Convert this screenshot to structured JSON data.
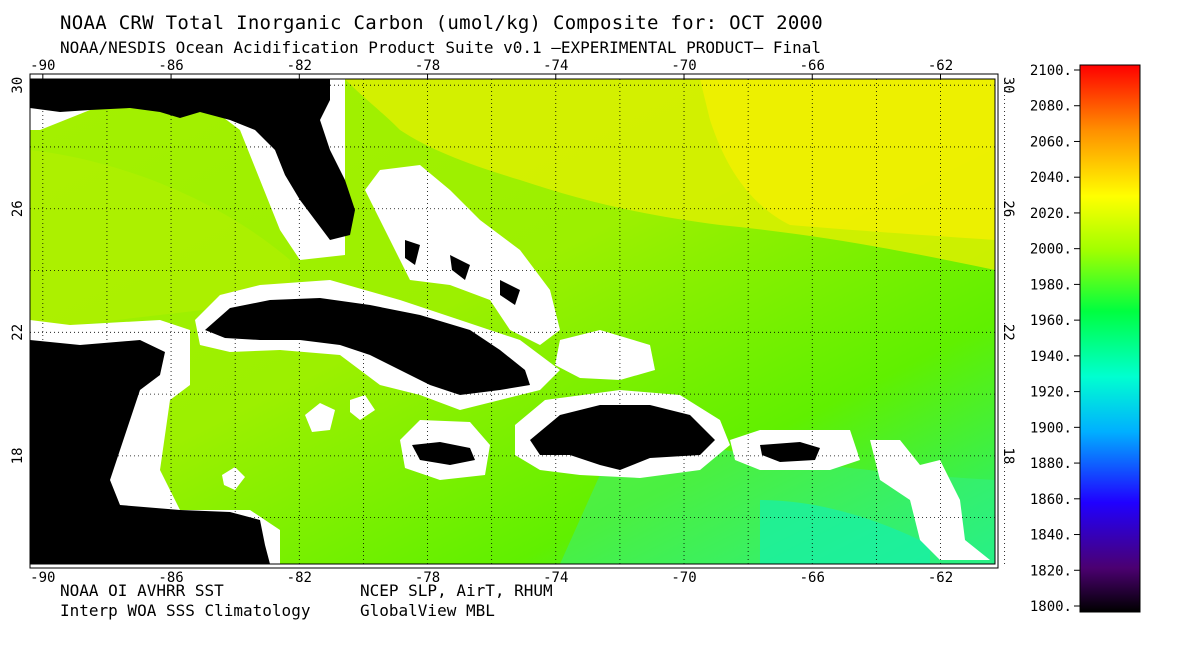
{
  "header": {
    "title": "NOAA CRW Total Inorganic Carbon (umol/kg) Composite for: OCT 2000",
    "subtitle": "NOAA/NESDIS Ocean Acidification Product Suite  v0.1 –EXPERIMENTAL PRODUCT–   Final"
  },
  "footer": {
    "sources_left_1": "NOAA OI AVHRR SST",
    "sources_left_2": "Interp WOA SSS Climatology",
    "sources_mid_1": "NCEP SLP, AirT, RHUM",
    "sources_mid_2": "GlobalView MBL"
  },
  "map": {
    "region": "Caribbean / Gulf of Mexico / Western Atlantic",
    "lon_ticks": [
      "-90",
      "-86",
      "-82",
      "-78",
      "-74",
      "-70",
      "-66",
      "-62"
    ],
    "lat_ticks": [
      "30",
      "26",
      "22",
      "18"
    ],
    "lon_range": [
      -90.4,
      -60.3
    ],
    "lat_range": [
      14.5,
      30.2
    ],
    "grid": true,
    "land_color": "#000000",
    "coast_mask_color": "#ffffff"
  },
  "colorbar": {
    "labels": [
      "2100.",
      "2080.",
      "2060.",
      "2040.",
      "2020.",
      "2000.",
      "1980.",
      "1960.",
      "1940.",
      "1920.",
      "1900.",
      "1880.",
      "1860.",
      "1840.",
      "1820.",
      "1800."
    ],
    "min": 1800,
    "max": 2100,
    "colors": [
      "#000000",
      "#4b0070",
      "#2000ff",
      "#00b0ff",
      "#00ffd0",
      "#00ff40",
      "#a0ff00",
      "#ffff00",
      "#ff9000",
      "#ff0000"
    ]
  }
}
